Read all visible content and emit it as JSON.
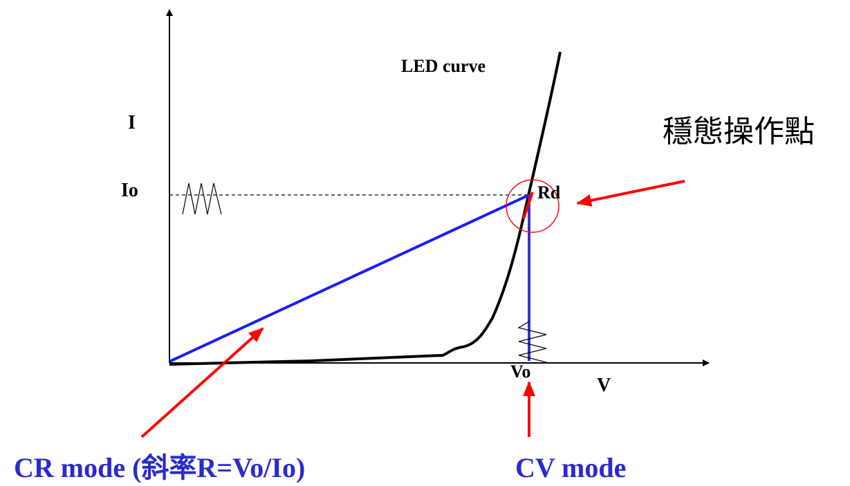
{
  "labels": {
    "curve": "LED curve",
    "y_axis": "I",
    "io": "Io",
    "rd": "Rd",
    "vo": "Vo",
    "x_axis": "V",
    "operating_point": "穩態操作點",
    "cr_mode": "CR mode (斜率R=Vo/Io)",
    "cv_mode": "CV mode"
  }
}
